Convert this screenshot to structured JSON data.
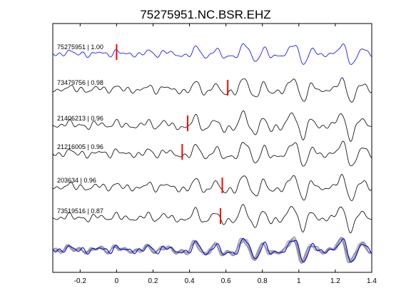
{
  "chart_data": {
    "type": "line",
    "title": "75275951.NC.BSR.EHZ",
    "xlabel": "",
    "ylabel": "",
    "xlim": [
      -0.35,
      1.4
    ],
    "xticks": [
      "-0.2",
      "0",
      "0.2",
      "0.4",
      "0.6",
      "0.8",
      "1",
      "1.2",
      "1.4"
    ],
    "xtick_values": [
      -0.2,
      0,
      0.2,
      0.4,
      0.6,
      0.8,
      1.0,
      1.2,
      1.4
    ],
    "grid": false,
    "colors": {
      "reference": "#0000ff",
      "trace": "#000000",
      "pick": "#ff0000",
      "stack_gray": "#8c8c8c"
    },
    "series": [
      {
        "name": "75275951 | 1.00",
        "pick_time": 0.0,
        "color": "#0000ff"
      },
      {
        "name": "73479756 | 0.98",
        "pick_time": 0.61,
        "color": "#000000"
      },
      {
        "name": "21406213 | 0.96",
        "pick_time": 0.39,
        "color": "#000000"
      },
      {
        "name": "21216005 | 0.96",
        "pick_time": 0.36,
        "color": "#000000"
      },
      {
        "name": "203634 | 0.96",
        "pick_time": 0.58,
        "color": "#000000"
      },
      {
        "name": "73519516 | 0.87",
        "pick_time": 0.57,
        "color": "#000000"
      }
    ],
    "stacked_overlay": true
  }
}
